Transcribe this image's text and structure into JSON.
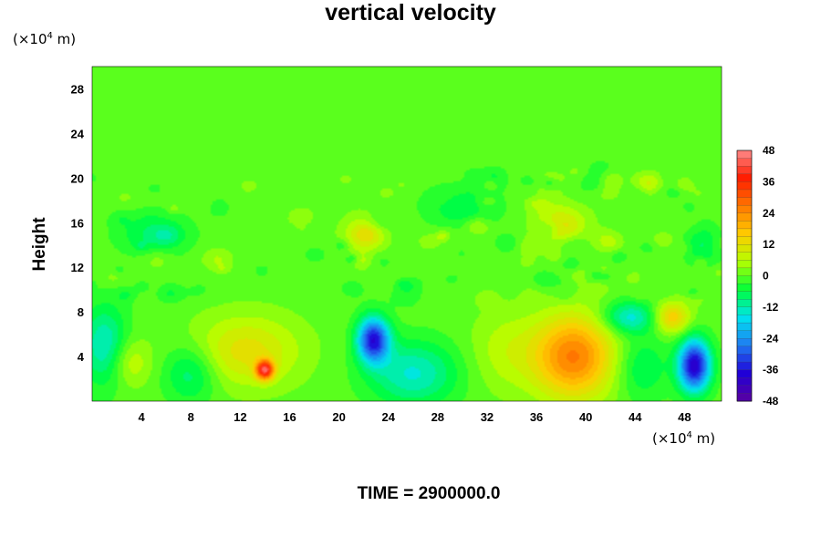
{
  "chart_data": {
    "type": "heatmap",
    "title": "vertical velocity",
    "xlabel": "",
    "ylabel": "Height",
    "x_unit": "(×10⁴ m)",
    "y_unit": "(×10⁴ m)",
    "xlim": [
      0,
      51
    ],
    "ylim": [
      0,
      30
    ],
    "x_ticks": [
      4,
      8,
      12,
      16,
      20,
      24,
      28,
      32,
      36,
      40,
      44,
      48
    ],
    "y_ticks": [
      4,
      8,
      12,
      16,
      20,
      24,
      28
    ],
    "colorbar": {
      "range": [
        -48,
        48
      ],
      "ticks": [
        48,
        36,
        24,
        12,
        0,
        -12,
        -24,
        -36,
        -48
      ],
      "colors": [
        "#5a00a0",
        "#1f00d8",
        "#1f7bf2",
        "#00e3f0",
        "#00ff3a",
        "#b4ff00",
        "#ffcc00",
        "#ff7800",
        "#ff1c00",
        "#ff8a8a"
      ]
    },
    "background_value": 0,
    "features": [
      {
        "x": 39.0,
        "y": 4.0,
        "value": 26,
        "sx": 2.3,
        "sy": 2.6
      },
      {
        "x": 14.0,
        "y": 2.8,
        "value": 38,
        "sx": 0.5,
        "sy": 0.6
      },
      {
        "x": 12.5,
        "y": 4.5,
        "value": 12,
        "sx": 3.0,
        "sy": 2.2
      },
      {
        "x": 22.8,
        "y": 5.5,
        "value": -36,
        "sx": 0.9,
        "sy": 1.4
      },
      {
        "x": 48.8,
        "y": 3.2,
        "value": -40,
        "sx": 0.9,
        "sy": 1.6
      },
      {
        "x": 47.0,
        "y": 7.5,
        "value": 16,
        "sx": 1.0,
        "sy": 1.0
      },
      {
        "x": 43.5,
        "y": 7.5,
        "value": -15,
        "sx": 1.5,
        "sy": 1.0
      },
      {
        "x": 1.0,
        "y": 5.0,
        "value": -14,
        "sx": 1.3,
        "sy": 2.5
      },
      {
        "x": 3.0,
        "y": 3.5,
        "value": 8,
        "sx": 1.2,
        "sy": 1.5
      },
      {
        "x": 8.0,
        "y": 2.5,
        "value": -10,
        "sx": 1.5,
        "sy": 1.8
      },
      {
        "x": 26.0,
        "y": 2.5,
        "value": -14,
        "sx": 2.5,
        "sy": 2.0
      },
      {
        "x": 33.5,
        "y": 4.5,
        "value": 6,
        "sx": 2.0,
        "sy": 2.5
      },
      {
        "x": 44.5,
        "y": 3.0,
        "value": -8,
        "sx": 1.5,
        "sy": 2.0
      },
      {
        "x": 38.0,
        "y": 16.0,
        "value": 10,
        "sx": 1.5,
        "sy": 1.2
      },
      {
        "x": 22.0,
        "y": 15.0,
        "value": 9,
        "sx": 1.2,
        "sy": 1.2
      },
      {
        "x": 30.0,
        "y": 17.5,
        "value": -8,
        "sx": 2.0,
        "sy": 1.3
      },
      {
        "x": 5.0,
        "y": 15.0,
        "value": -8,
        "sx": 2.0,
        "sy": 1.3
      },
      {
        "x": 49.5,
        "y": 14.0,
        "value": -8,
        "sx": 1.0,
        "sy": 1.3
      }
    ]
  },
  "time_label": "TIME = 2900000.0"
}
